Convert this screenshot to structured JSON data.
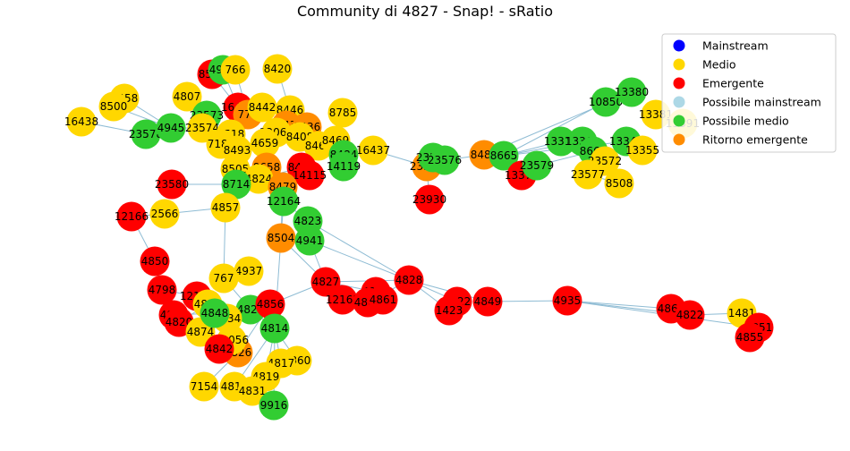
{
  "title": "Community di 4827 - Snap! - sRatio",
  "colors": {
    "mainstream": "#0000ff",
    "medio": "#ffd700",
    "emergente": "#ff0000",
    "possibile_mainstream": "#add8e6",
    "possibile_medio": "#32cd32",
    "ritorno_emergente": "#ff8c00",
    "edge": "#8fbcd4"
  },
  "legend": [
    {
      "label": "Mainstream",
      "color_key": "mainstream"
    },
    {
      "label": "Medio",
      "color_key": "medio"
    },
    {
      "label": "Emergente",
      "color_key": "emergente"
    },
    {
      "label": "Possibile mainstream",
      "color_key": "possibile_mainstream"
    },
    {
      "label": "Possibile medio",
      "color_key": "possibile_medio"
    },
    {
      "label": "Ritorno emergente",
      "color_key": "ritorno_emergente"
    }
  ],
  "nodes": [
    {
      "id": "8566",
      "cat": "emergente"
    },
    {
      "id": "4976",
      "cat": "possibile_medio"
    },
    {
      "id": "766",
      "cat": "medio"
    },
    {
      "id": "8420",
      "cat": "medio"
    },
    {
      "id": "8458",
      "cat": "medio"
    },
    {
      "id": "8500",
      "cat": "medio"
    },
    {
      "id": "4807",
      "cat": "medio"
    },
    {
      "id": "16438",
      "cat": "medio"
    },
    {
      "id": "23578",
      "cat": "possibile_medio"
    },
    {
      "id": "4945",
      "cat": "possibile_medio"
    },
    {
      "id": "23573",
      "cat": "possibile_medio"
    },
    {
      "id": "23574",
      "cat": "medio"
    },
    {
      "id": "16435",
      "cat": "emergente"
    },
    {
      "id": "775",
      "cat": "ritorno_emergente"
    },
    {
      "id": "8442",
      "cat": "medio"
    },
    {
      "id": "8446",
      "cat": "medio"
    },
    {
      "id": "8785",
      "cat": "medio"
    },
    {
      "id": "16434",
      "cat": "ritorno_emergente"
    },
    {
      "id": "2518",
      "cat": "medio"
    },
    {
      "id": "7189",
      "cat": "medio"
    },
    {
      "id": "12060",
      "cat": "medio"
    },
    {
      "id": "8436",
      "cat": "ritorno_emergente"
    },
    {
      "id": "8493",
      "cat": "medio"
    },
    {
      "id": "4659",
      "cat": "medio"
    },
    {
      "id": "8408",
      "cat": "medio"
    },
    {
      "id": "8469",
      "cat": "medio"
    },
    {
      "id": "8469b",
      "cat": "medio"
    },
    {
      "id": "16437",
      "cat": "medio"
    },
    {
      "id": "8484",
      "cat": "possibile_medio"
    },
    {
      "id": "14119",
      "cat": "possibile_medio"
    },
    {
      "id": "8505",
      "cat": "medio"
    },
    {
      "id": "8658",
      "cat": "ritorno_emergente"
    },
    {
      "id": "8499",
      "cat": "emergente"
    },
    {
      "id": "4824",
      "cat": "medio"
    },
    {
      "id": "14115",
      "cat": "emergente"
    },
    {
      "id": "8714",
      "cat": "possibile_medio"
    },
    {
      "id": "8479",
      "cat": "ritorno_emergente"
    },
    {
      "id": "23580",
      "cat": "emergente"
    },
    {
      "id": "12164",
      "cat": "possibile_medio"
    },
    {
      "id": "4857",
      "cat": "medio"
    },
    {
      "id": "12166",
      "cat": "emergente"
    },
    {
      "id": "2566",
      "cat": "medio"
    },
    {
      "id": "4823",
      "cat": "possibile_medio"
    },
    {
      "id": "8504",
      "cat": "ritorno_emergente"
    },
    {
      "id": "4941",
      "cat": "possibile_medio"
    },
    {
      "id": "4850",
      "cat": "emergente"
    },
    {
      "id": "4937",
      "cat": "medio"
    },
    {
      "id": "767",
      "cat": "medio"
    },
    {
      "id": "4798",
      "cat": "emergente"
    },
    {
      "id": "12165",
      "cat": "emergente"
    },
    {
      "id": "4835",
      "cat": "medio"
    },
    {
      "id": "4854",
      "cat": "emergente"
    },
    {
      "id": "4820",
      "cat": "emergente"
    },
    {
      "id": "4827",
      "cat": "emergente"
    },
    {
      "id": "12163",
      "cat": "emergente"
    },
    {
      "id": "4921",
      "cat": "emergente"
    },
    {
      "id": "4867",
      "cat": "emergente"
    },
    {
      "id": "4861",
      "cat": "emergente"
    },
    {
      "id": "4828",
      "cat": "emergente"
    },
    {
      "id": "4825",
      "cat": "possibile_medio"
    },
    {
      "id": "4856",
      "cat": "emergente"
    },
    {
      "id": "4814",
      "cat": "possibile_medio"
    },
    {
      "id": "4849",
      "cat": "emergente"
    },
    {
      "id": "4922",
      "cat": "emergente"
    },
    {
      "id": "1423",
      "cat": "emergente"
    },
    {
      "id": "4935",
      "cat": "emergente"
    },
    {
      "id": "4868",
      "cat": "emergente"
    },
    {
      "id": "4822",
      "cat": "emergente"
    },
    {
      "id": "1481",
      "cat": "medio"
    },
    {
      "id": "4851",
      "cat": "emergente"
    },
    {
      "id": "4855",
      "cat": "emergente"
    },
    {
      "id": "4874",
      "cat": "medio"
    },
    {
      "id": "4934",
      "cat": "medio"
    },
    {
      "id": "4826",
      "cat": "ritorno_emergente"
    },
    {
      "id": "12056",
      "cat": "medio"
    },
    {
      "id": "4842",
      "cat": "emergente"
    },
    {
      "id": "4860",
      "cat": "medio"
    },
    {
      "id": "4817",
      "cat": "medio"
    },
    {
      "id": "4819",
      "cat": "medio"
    },
    {
      "id": "7154",
      "cat": "medio"
    },
    {
      "id": "4815",
      "cat": "medio"
    },
    {
      "id": "4831",
      "cat": "medio"
    },
    {
      "id": "9916",
      "cat": "possibile_medio"
    },
    {
      "id": "4848",
      "cat": "possibile_medio"
    },
    {
      "id": "23581",
      "cat": "ritorno_emergente"
    },
    {
      "id": "23575",
      "cat": "possibile_medio"
    },
    {
      "id": "23576",
      "cat": "possibile_medio"
    },
    {
      "id": "23930",
      "cat": "emergente"
    },
    {
      "id": "8489",
      "cat": "ritorno_emergente"
    },
    {
      "id": "8665",
      "cat": "possibile_medio"
    },
    {
      "id": "13372",
      "cat": "emergente"
    },
    {
      "id": "23579",
      "cat": "possibile_medio"
    },
    {
      "id": "13319",
      "cat": "possibile_medio"
    },
    {
      "id": "13361",
      "cat": "possibile_medio"
    },
    {
      "id": "8661",
      "cat": "possibile_medio"
    },
    {
      "id": "23572",
      "cat": "medio"
    },
    {
      "id": "23577",
      "cat": "medio"
    },
    {
      "id": "8508",
      "cat": "medio"
    },
    {
      "id": "10850",
      "cat": "possibile_medio"
    },
    {
      "id": "13380",
      "cat": "possibile_medio"
    },
    {
      "id": "13381",
      "cat": "medio"
    },
    {
      "id": "13391",
      "cat": "medio"
    },
    {
      "id": "13342",
      "cat": "possibile_medio"
    },
    {
      "id": "13355",
      "cat": "medio"
    }
  ]
}
